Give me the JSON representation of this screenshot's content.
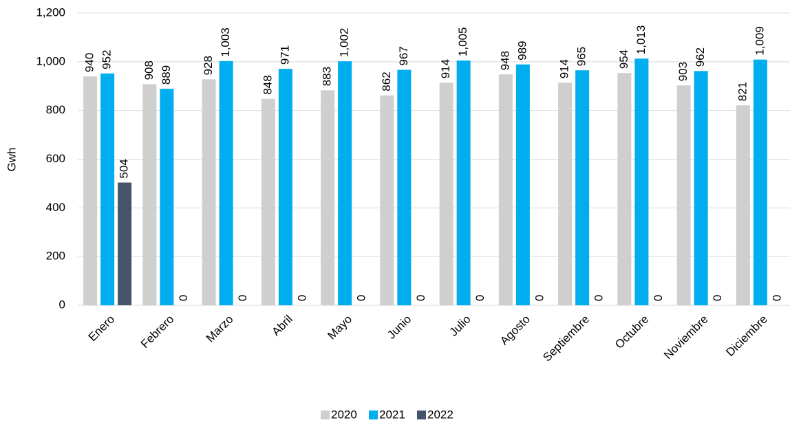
{
  "chart_data": {
    "type": "bar",
    "y_label": "Gwh",
    "categories": [
      "Enero",
      "Febrero",
      "Marzo",
      "Abril",
      "Mayo",
      "Junio",
      "Julio",
      "Agosto",
      "Septiembre",
      "Octubre",
      "Noviembre",
      "Diciembre"
    ],
    "series": [
      {
        "name": "2020",
        "color": "#d0cfcf",
        "values": [
          940,
          908,
          928,
          848,
          883,
          862,
          914,
          948,
          914,
          954,
          903,
          821
        ]
      },
      {
        "name": "2021",
        "color": "#00adef",
        "values": [
          952,
          889,
          1003,
          971,
          1002,
          967,
          1005,
          989,
          965,
          1013,
          962,
          1009
        ],
        "value_labels": [
          "952",
          "889",
          "1,003",
          "971",
          "1,002",
          "967",
          "1,005",
          "989",
          "965",
          "1,013",
          "962",
          "1,009"
        ]
      },
      {
        "name": "2022",
        "color": "#44546a",
        "values": [
          504,
          0,
          0,
          0,
          0,
          0,
          0,
          0,
          0,
          0,
          0,
          0
        ]
      }
    ],
    "ylim": [
      0,
      1200
    ],
    "yticks": [
      0,
      200,
      400,
      600,
      800,
      {
        "value": 1000,
        "label": "1,000"
      },
      {
        "value": 1200,
        "label": "1,200"
      }
    ],
    "grid": true,
    "legend": "bottom"
  }
}
